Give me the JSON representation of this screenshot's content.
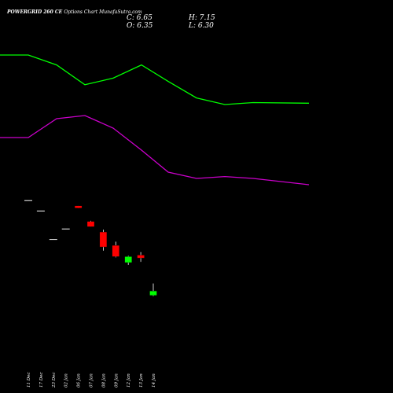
{
  "header": {
    "symbol": "POWERGRID 260  CE",
    "subtitle": "Options   Chart MunafaSutra.com",
    "close": "C: 6.65",
    "open": "O: 6.35",
    "high": "H: 7.15",
    "low": "L: 6.30"
  },
  "chart_data": {
    "type": "candlestick",
    "title": "POWERGRID 260  CE Options   Chart MunafaSutra.com",
    "grid": false,
    "colors": {
      "background": "#000000",
      "up": "#00ff00",
      "down": "#ff0000",
      "flat": "#ffffff",
      "line_upper": "#00ff00",
      "line_lower": "#cc00cc"
    },
    "ylim": [
      4,
      16
    ],
    "candles": [
      {
        "date": "11 Dec",
        "open": 12.7,
        "high": 12.7,
        "low": 12.7,
        "close": 12.7
      },
      {
        "date": "17 Dec",
        "open": 12.0,
        "high": 12.0,
        "low": 12.0,
        "close": 12.0
      },
      {
        "date": "23 Dec",
        "open": 10.1,
        "high": 10.1,
        "low": 10.1,
        "close": 10.1
      },
      {
        "date": "02 Jan",
        "open": 10.8,
        "high": 10.8,
        "low": 10.8,
        "close": 10.8
      },
      {
        "date": "06 Jan",
        "open": 12.35,
        "high": 12.35,
        "low": 12.2,
        "close": 12.2
      },
      {
        "date": "07 Jan",
        "open": 11.3,
        "high": 11.35,
        "low": 10.95,
        "close": 10.95
      },
      {
        "date": "08 Jan",
        "open": 10.6,
        "high": 10.75,
        "low": 9.35,
        "close": 9.6
      },
      {
        "date": "09 Jan",
        "open": 9.7,
        "high": 9.95,
        "low": 8.9,
        "close": 8.95
      },
      {
        "date": "12 Jan",
        "open": 8.55,
        "high": 9.0,
        "low": 8.4,
        "close": 8.95
      },
      {
        "date": "13 Jan",
        "open": 9.05,
        "high": 9.25,
        "low": 8.6,
        "close": 8.85
      },
      {
        "date": "14 Jan",
        "open": 6.35,
        "high": 7.15,
        "low": 6.3,
        "close": 6.65
      }
    ],
    "upper_line": [
      {
        "date": "11 Dec",
        "value": 15.6
      },
      {
        "date": "23 Dec",
        "value": 15.45
      },
      {
        "date": "06 Jan",
        "value": 15.15
      },
      {
        "date": "08 Jan",
        "value": 15.25
      },
      {
        "date": "12 Jan",
        "value": 15.45
      },
      {
        "date": "14 Jan",
        "value": 15.2
      },
      {
        "date": "16 Jan",
        "value": 14.95
      },
      {
        "date": "20 Jan",
        "value": 14.85
      },
      {
        "date": "24 Jan",
        "value": 14.88
      },
      {
        "date": "30 Jan",
        "value": 14.87
      }
    ],
    "lower_line": [
      {
        "date": "11 Dec",
        "value": 14.2
      },
      {
        "date": "23 Dec",
        "value": 14.5
      },
      {
        "date": "06 Jan",
        "value": 14.55
      },
      {
        "date": "08 Jan",
        "value": 14.35
      },
      {
        "date": "12 Jan",
        "value": 14.0
      },
      {
        "date": "14 Jan",
        "value": 13.65
      },
      {
        "date": "16 Jan",
        "value": 13.55
      },
      {
        "date": "20 Jan",
        "value": 13.58
      },
      {
        "date": "24 Jan",
        "value": 13.55
      },
      {
        "date": "30 Jan",
        "value": 13.45
      }
    ]
  }
}
